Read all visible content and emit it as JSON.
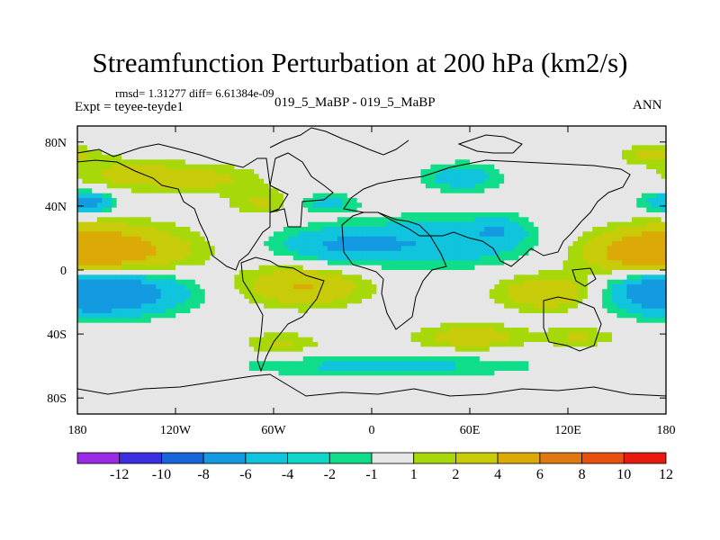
{
  "chart_data": {
    "type": "heatmap",
    "title": "Streamfunction Perturbation at 200 hPa (km2/s)",
    "subtitle_left_top": "rmsd= 1.31277 diff= 6.61384e-09",
    "subtitle_left": "Expt = teyee-teyde1",
    "subtitle_center": "019_5_MaBP - 019_5_MaBP",
    "subtitle_right": "ANN",
    "x_axis": {
      "range": [
        -180,
        180
      ],
      "ticks": [
        -180,
        -120,
        -60,
        0,
        60,
        120,
        180
      ],
      "tick_labels": [
        "180",
        "120W",
        "60W",
        "0",
        "60E",
        "120E",
        "180"
      ]
    },
    "y_axis": {
      "range": [
        -90,
        90
      ],
      "ticks": [
        80,
        40,
        0,
        -40,
        -80
      ],
      "tick_labels": [
        "80N",
        "40N",
        "0",
        "40S",
        "80S"
      ]
    },
    "colorbar": {
      "labels": [
        "-12",
        "-10",
        "-8",
        "-6",
        "-4",
        "-2",
        "-1",
        "1",
        "2",
        "4",
        "6",
        "8",
        "10",
        "12"
      ],
      "colors": [
        "#9b2ae6",
        "#3a2ee0",
        "#1764d8",
        "#139ae0",
        "#0fc4dc",
        "#10d7c8",
        "#10dd8a",
        "#e6e6e6",
        "#a6d80a",
        "#c8cc08",
        "#dcaa06",
        "#e07810",
        "#e85010",
        "#e81a10"
      ]
    },
    "field_anomalies": [
      {
        "lon": -168,
        "lat": 12,
        "sx": 55,
        "sy": 16,
        "amp": 6
      },
      {
        "lon": -158,
        "lat": -14,
        "sx": 48,
        "sy": 14,
        "amp": -5
      },
      {
        "lon": -150,
        "lat": 60,
        "sx": 35,
        "sy": 10,
        "amp": 2.4
      },
      {
        "lon": -102,
        "lat": 57,
        "sx": 36,
        "sy": 9,
        "amp": 2.4
      },
      {
        "lon": -66,
        "lat": 42,
        "sx": 22,
        "sy": 8,
        "amp": 2.2
      },
      {
        "lon": -170,
        "lat": 42,
        "sx": 12,
        "sy": 7,
        "amp": -3
      },
      {
        "lon": -28,
        "lat": 42,
        "sx": 20,
        "sy": 6,
        "amp": -2.6
      },
      {
        "lon": -20,
        "lat": 15,
        "sx": 42,
        "sy": 12,
        "amp": -3.8
      },
      {
        "lon": 48,
        "lat": 18,
        "sx": 55,
        "sy": 16,
        "amp": -3.4
      },
      {
        "lon": 78,
        "lat": 25,
        "sx": 16,
        "sy": 8,
        "amp": -2.2
      },
      {
        "lon": -42,
        "lat": -10,
        "sx": 38,
        "sy": 13,
        "amp": 4.2
      },
      {
        "lon": 55,
        "lat": 58,
        "sx": 24,
        "sy": 9,
        "amp": -3.2
      },
      {
        "lon": 110,
        "lat": -14,
        "sx": 32,
        "sy": 11,
        "amp": 4.2
      },
      {
        "lon": 172,
        "lat": 8,
        "sx": 40,
        "sy": 14,
        "amp": 2.8
      },
      {
        "lon": 180,
        "lat": -12,
        "sx": 40,
        "sy": 14,
        "amp": -4.8
      },
      {
        "lon": 180,
        "lat": 42,
        "sx": 18,
        "sy": 7,
        "amp": -3
      },
      {
        "lon": 172,
        "lat": 72,
        "sx": 22,
        "sy": 6,
        "amp": 2.4
      },
      {
        "lon": 60,
        "lat": -42,
        "sx": 34,
        "sy": 8,
        "amp": 3.2
      },
      {
        "lon": -55,
        "lat": -46,
        "sx": 24,
        "sy": 7,
        "amp": 2.2
      },
      {
        "lon": 128,
        "lat": -42,
        "sx": 24,
        "sy": 6,
        "amp": 2.2
      },
      {
        "lon": 10,
        "lat": -60,
        "sx": 90,
        "sy": 7,
        "amp": -2.6
      }
    ]
  }
}
